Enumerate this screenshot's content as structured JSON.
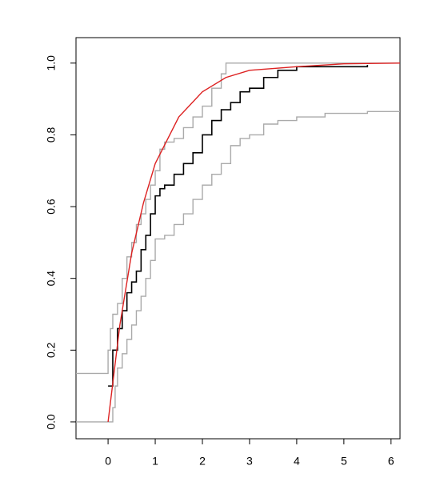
{
  "chart_data": {
    "type": "line",
    "xlim": [
      -0.68,
      6.19
    ],
    "ylim": [
      -0.047,
      1.071
    ],
    "xticks": [
      0,
      1,
      2,
      3,
      4,
      5,
      6
    ],
    "yticks": [
      {
        "value": 0,
        "label": "0.0"
      },
      {
        "value": 0.2,
        "label": "0.2"
      },
      {
        "value": 0.4,
        "label": "0.4"
      },
      {
        "value": 0.6,
        "label": "0.6"
      },
      {
        "value": 0.8,
        "label": "0.8"
      },
      {
        "value": 1,
        "label": "1.0"
      }
    ],
    "series": [
      {
        "color": "#aaaaaa",
        "step": true,
        "x": [
          -0.68,
          0,
          0.05,
          0.1,
          0.2,
          0.3,
          0.4,
          0.5,
          0.6,
          0.7,
          0.8,
          0.9,
          1.0,
          1.1,
          1.2,
          1.4,
          1.6,
          1.8,
          2.0,
          2.2,
          2.4,
          2.5,
          6.19
        ],
        "values": [
          0.135,
          0.2,
          0.26,
          0.3,
          0.33,
          0.4,
          0.46,
          0.5,
          0.55,
          0.58,
          0.62,
          0.66,
          0.7,
          0.76,
          0.78,
          0.79,
          0.82,
          0.85,
          0.88,
          0.93,
          0.97,
          1.0,
          1.0
        ]
      },
      {
        "color": "#aaaaaa",
        "step": true,
        "x": [
          -0.68,
          0.1,
          0.15,
          0.2,
          0.3,
          0.4,
          0.5,
          0.6,
          0.7,
          0.8,
          0.9,
          1.0,
          1.2,
          1.4,
          1.6,
          1.8,
          2.0,
          2.2,
          2.4,
          2.6,
          2.8,
          3.0,
          3.3,
          3.6,
          4.0,
          4.6,
          5.5,
          6.19
        ],
        "values": [
          0,
          0.04,
          0.1,
          0.15,
          0.19,
          0.23,
          0.27,
          0.31,
          0.35,
          0.4,
          0.45,
          0.51,
          0.52,
          0.55,
          0.58,
          0.62,
          0.66,
          0.69,
          0.72,
          0.77,
          0.79,
          0.8,
          0.83,
          0.84,
          0.85,
          0.86,
          0.865,
          0.865
        ]
      },
      {
        "color": "#000000",
        "step": true,
        "x": [
          0,
          0.1,
          0.2,
          0.3,
          0.4,
          0.5,
          0.6,
          0.7,
          0.8,
          0.9,
          1.0,
          1.1,
          1.2,
          1.4,
          1.6,
          1.8,
          2.0,
          2.2,
          2.4,
          2.6,
          2.8,
          3.0,
          3.3,
          3.6,
          4.0,
          4.5,
          5.5
        ],
        "values": [
          0.1,
          0.2,
          0.26,
          0.31,
          0.36,
          0.39,
          0.42,
          0.48,
          0.52,
          0.58,
          0.63,
          0.65,
          0.66,
          0.69,
          0.72,
          0.75,
          0.8,
          0.84,
          0.87,
          0.89,
          0.92,
          0.93,
          0.96,
          0.98,
          0.99,
          0.99,
          0.995
        ]
      },
      {
        "color": "#dd2222",
        "step": false,
        "x": [
          0,
          0.25,
          0.5,
          0.75,
          1,
          1.5,
          2,
          2.5,
          3,
          4,
          5,
          6.19
        ],
        "values": [
          0,
          0.27,
          0.47,
          0.61,
          0.72,
          0.85,
          0.92,
          0.96,
          0.98,
          0.99,
          0.998,
          1.0
        ]
      }
    ]
  }
}
